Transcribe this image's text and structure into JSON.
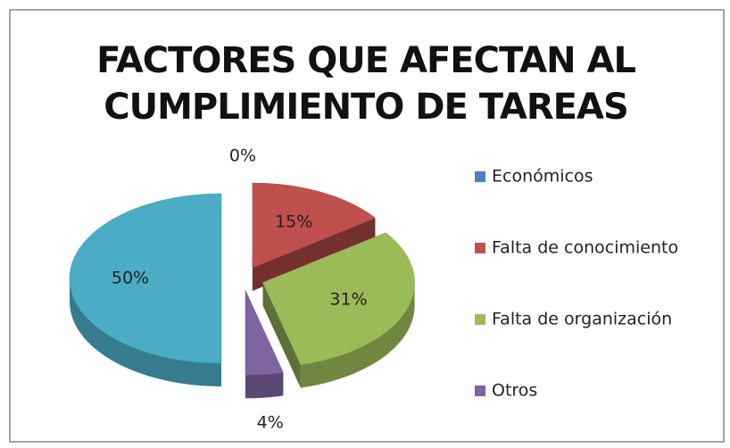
{
  "chart_data": {
    "type": "pie",
    "title": "FACTORES QUE AFECTAN AL CUMPLIMIENTO DE TAREAS",
    "categories": [
      "Económicos",
      "Falta de conocimiento",
      "Falta de organización",
      "Otros",
      null
    ],
    "values": [
      0,
      15,
      31,
      4,
      50
    ],
    "value_labels": [
      "0%",
      "15%",
      "31%",
      "4%",
      "50%"
    ],
    "colors": [
      "#4f81bd",
      "#c0504d",
      "#9bbb59",
      "#8064a2",
      "#4bacc6"
    ],
    "legend": "right"
  }
}
